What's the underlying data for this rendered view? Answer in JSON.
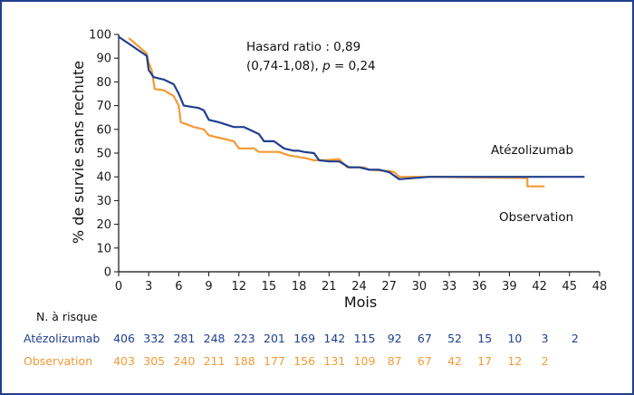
{
  "chart_data": {
    "type": "line",
    "xlabel": "Mois",
    "ylabel": "% de survie sans rechute",
    "xlim": [
      0,
      48
    ],
    "ylim": [
      0,
      100
    ],
    "x_ticks": [
      "0",
      "3",
      "6",
      "9",
      "12",
      "15",
      "18",
      "21",
      "24",
      "27",
      "30",
      "33",
      "36",
      "39",
      "42",
      "45",
      "48"
    ],
    "y_ticks": [
      "0",
      "10",
      "20",
      "30",
      "40",
      "50",
      "60",
      "70",
      "80",
      "90",
      "100"
    ],
    "annotation_line1": "Hasard ratio : 0,89",
    "annotation_line2_prefix": "(0,74-1,08), ",
    "annotation_p": "p",
    "annotation_line2_suffix": " = 0,24",
    "series": [
      {
        "name": "Atézolizumab",
        "color": "#1f3f8f",
        "points": [
          [
            0,
            99
          ],
          [
            2.8,
            91
          ],
          [
            3,
            85
          ],
          [
            3.5,
            82
          ],
          [
            4.5,
            81
          ],
          [
            5.5,
            79
          ],
          [
            6,
            75
          ],
          [
            6.5,
            70
          ],
          [
            8,
            69
          ],
          [
            8.5,
            68
          ],
          [
            9,
            64
          ],
          [
            10,
            63
          ],
          [
            11.5,
            61
          ],
          [
            12.5,
            61
          ],
          [
            13,
            60
          ],
          [
            14,
            58
          ],
          [
            14.5,
            55
          ],
          [
            15.5,
            55
          ],
          [
            16.5,
            52
          ],
          [
            17.5,
            51
          ],
          [
            18,
            51
          ],
          [
            18.5,
            50.5
          ],
          [
            19.5,
            50
          ],
          [
            20,
            47
          ],
          [
            21,
            46.5
          ],
          [
            22,
            46.5
          ],
          [
            23,
            44
          ],
          [
            24,
            44
          ],
          [
            25,
            43
          ],
          [
            26,
            43
          ],
          [
            27,
            42
          ],
          [
            28,
            39
          ],
          [
            31,
            40
          ],
          [
            46.5,
            40
          ]
        ]
      },
      {
        "name": "Observation",
        "color": "#f59a35",
        "points": [
          [
            1,
            98.5
          ],
          [
            2.8,
            92
          ],
          [
            3,
            88
          ],
          [
            3.3,
            85
          ],
          [
            3.6,
            77
          ],
          [
            4.5,
            76.5
          ],
          [
            5.5,
            74
          ],
          [
            6,
            70
          ],
          [
            6.2,
            63
          ],
          [
            7.5,
            61
          ],
          [
            8.5,
            60
          ],
          [
            9,
            57.5
          ],
          [
            10,
            56.5
          ],
          [
            11.5,
            55
          ],
          [
            12,
            52
          ],
          [
            13.5,
            52
          ],
          [
            14,
            50.5
          ],
          [
            16,
            50.5
          ],
          [
            17,
            49
          ],
          [
            18.5,
            48
          ],
          [
            19.5,
            47
          ],
          [
            20.5,
            47
          ],
          [
            22,
            47.5
          ],
          [
            22.8,
            44
          ],
          [
            24.5,
            44
          ],
          [
            25,
            43
          ],
          [
            26.5,
            42.5
          ],
          [
            27,
            42.5
          ],
          [
            27.5,
            42
          ],
          [
            28,
            40
          ],
          [
            31,
            40
          ],
          [
            40.8,
            39.5
          ],
          [
            40.8,
            36
          ],
          [
            42.5,
            36
          ]
        ]
      }
    ],
    "risk_table": {
      "header": "N. à risque",
      "times": [
        0,
        3,
        6,
        9,
        12,
        15,
        18,
        21,
        24,
        27,
        30,
        33,
        36,
        39,
        42,
        45
      ],
      "rows": [
        {
          "name": "Atézolizumab",
          "color": "#1f3f8f",
          "values": [
            "406",
            "332",
            "281",
            "248",
            "223",
            "201",
            "169",
            "142",
            "115",
            "92",
            "67",
            "52",
            "15",
            "10",
            "3",
            "2"
          ]
        },
        {
          "name": "Observation",
          "color": "#f59a35",
          "values": [
            "403",
            "305",
            "240",
            "211",
            "188",
            "177",
            "156",
            "131",
            "109",
            "87",
            "67",
            "42",
            "17",
            "12",
            "2",
            ""
          ]
        }
      ]
    }
  }
}
